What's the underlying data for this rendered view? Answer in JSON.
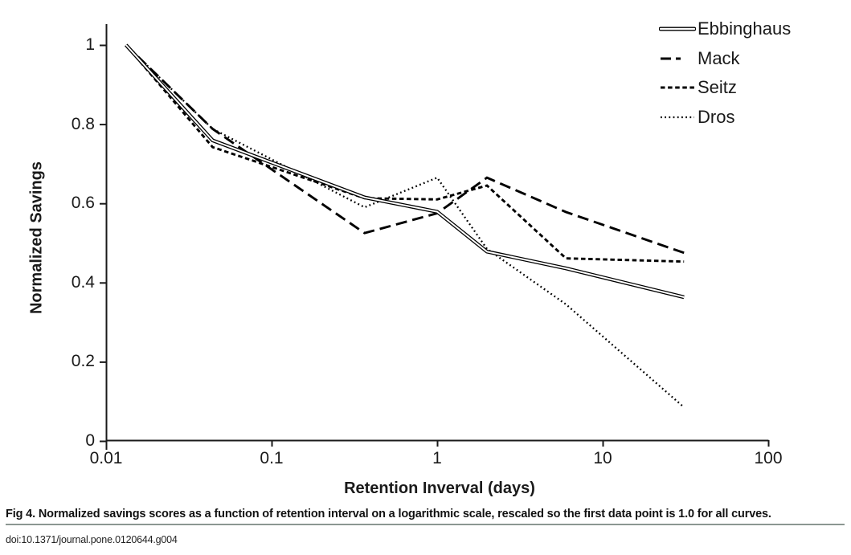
{
  "figure": {
    "caption": "Fig 4. Normalized savings scores as a function of retention interval on a logarithmic scale, rescaled so the first data point is 1.0 for all curves.",
    "doi": "doi:10.1371/journal.pone.0120644.g004"
  },
  "chart_data": {
    "type": "line",
    "title": "",
    "xlabel": "Retention Inverval (days)",
    "ylabel": "Normalized Savings",
    "x_scale": "log",
    "xlim": [
      0.01,
      100
    ],
    "ylim": [
      0,
      1
    ],
    "x_ticks": [
      "0.01",
      "0.1",
      "1",
      "10",
      "100"
    ],
    "y_ticks": [
      "0",
      "0.2",
      "0.4",
      "0.6",
      "0.8",
      "1"
    ],
    "grid": false,
    "legend_position": "top-right",
    "line_color": "#000000",
    "background_color": "#ffffff",
    "caption_rule_color": "#8b9792",
    "x_unit": "days",
    "x": [
      0.0132,
      0.044,
      0.3646,
      1,
      2,
      6,
      31
    ],
    "series": [
      {
        "name": "Ebbinghaus",
        "style": "double-solid",
        "values": [
          1.0,
          0.759,
          0.615,
          0.579,
          0.478,
          0.436,
          0.363
        ]
      },
      {
        "name": "Mack",
        "style": "long-dash",
        "values": [
          1.0,
          0.788,
          0.525,
          0.575,
          0.665,
          0.578,
          0.475
        ]
      },
      {
        "name": "Seitz",
        "style": "short-dash",
        "values": [
          1.0,
          0.742,
          0.613,
          0.61,
          0.645,
          0.461,
          0.453
        ]
      },
      {
        "name": "Dros",
        "style": "dotted",
        "values": [
          1.0,
          0.788,
          0.59,
          0.665,
          0.485,
          0.345,
          0.085
        ]
      }
    ]
  }
}
